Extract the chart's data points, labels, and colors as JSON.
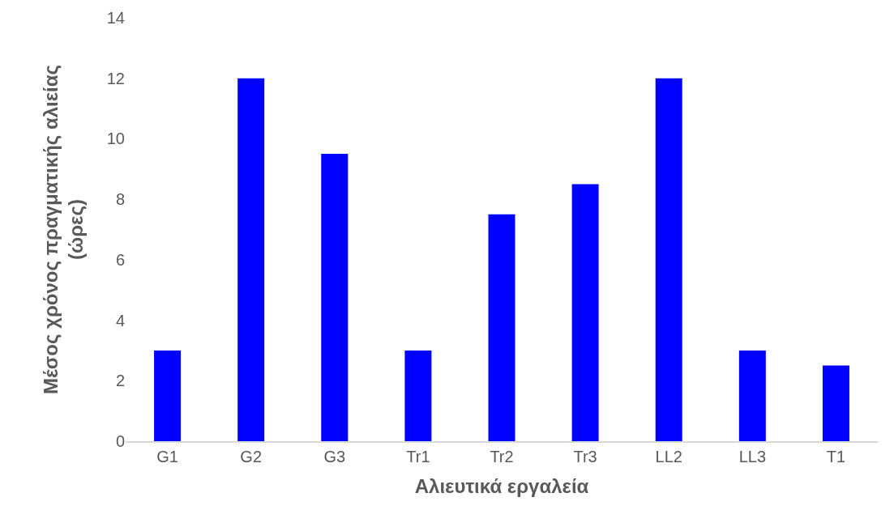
{
  "chart_data": {
    "type": "bar",
    "xlabel": "Αλιευτικά εργαλεία",
    "ylabel": "Μέσος χρόνος πραγματικής αλιείας (ώρες)",
    "categories": [
      "G1",
      "G2",
      "G3",
      "Tr1",
      "Tr2",
      "Tr3",
      "LL2",
      "LL3",
      "T1"
    ],
    "values": [
      3,
      12,
      9.5,
      3,
      7.5,
      8.5,
      12,
      3,
      2.5
    ],
    "color": "#0000ff",
    "ylim": [
      0,
      14
    ],
    "yticks": [
      0,
      2,
      4,
      6,
      8,
      10,
      12,
      14
    ],
    "grid": false,
    "legend": false
  }
}
